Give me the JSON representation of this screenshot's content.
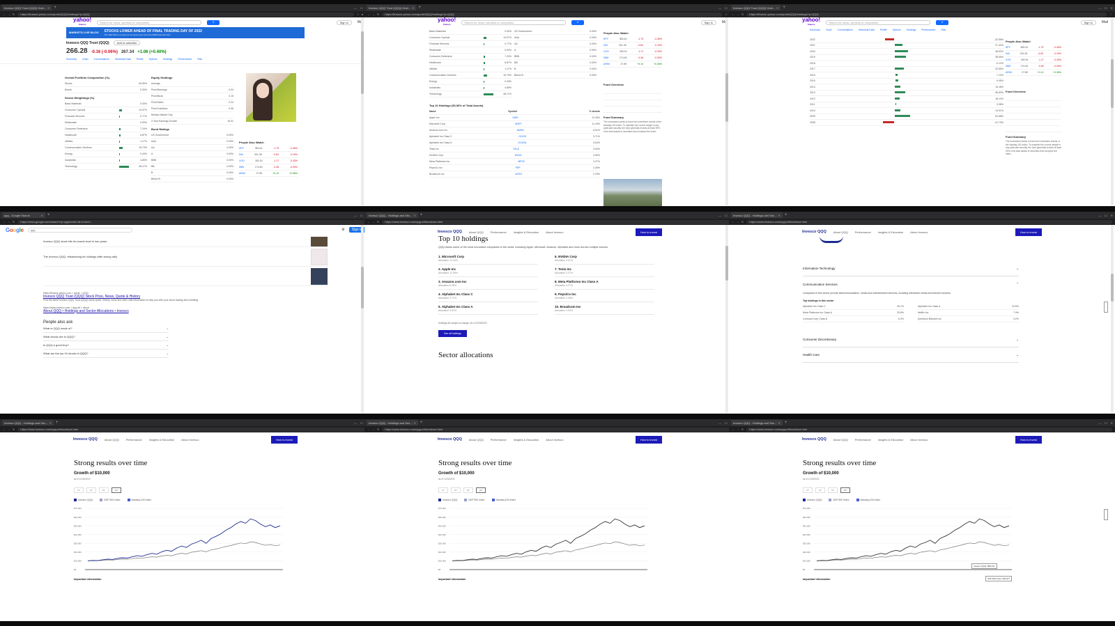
{
  "browser": {
    "tab_yahoo": "Invesco QQQ Trust (QQQ) Hold...",
    "tab_google": "qqq - Google Search",
    "tab_invesco": "Invesco QQQ - Holdings and Sec...",
    "url_yahoo": "https://finance.yahoo.com/quote/QQQ/holdings?p=QQQ",
    "url_google": "https://www.google.com/search?q=qqq&sxsrf=ALiCzsbO...",
    "url_invesco": "https://www.invesco.com/qqq-etf/en/about.html"
  },
  "yahoo": {
    "logo": "yahoo!",
    "logo_sub": "finance",
    "search_placeholder": "Search for news, symbols or companies",
    "sign_in": "Sign in",
    "mail": "Mail",
    "banner_label": "MARKETS LIVE BLOG",
    "banner_title": "STOCKS LOWER AHEAD OF FINAL TRADING DAY OF 2022",
    "banner_sub": "The S&P 500 is on pace for its worst year since the 2008 financial crisis",
    "quote_name": "Invesco QQQ Trust (QQQ)",
    "add_watchlist": "Add to watchlist",
    "price": "266.28",
    "change": "-0.16 (-0.06%)",
    "after_price": "267.34",
    "after_change": "+1.06 (+0.40%)",
    "nav": [
      "Summary",
      "Chart",
      "Conversations",
      "Historical Data",
      "Profile",
      "Options",
      "Holdings",
      "Performance",
      "Risk"
    ],
    "portfolio_title": "Overall Portfolio Composition (%)",
    "portfolio_rows": [
      [
        "Stocks",
        "99.95%"
      ],
      [
        "Bonds",
        "0.00%"
      ]
    ],
    "sector_title": "Sector Weightings (%)",
    "sector_rows": [
      [
        "Basic Materials",
        "0.00%"
      ],
      [
        "Consumer Cyclical",
        "14.97%"
      ],
      [
        "Financial Services",
        "0.77%"
      ],
      [
        "Realestate",
        "0.00%"
      ],
      [
        "Consumer Defensive",
        "7.24%"
      ],
      [
        "Healthcare",
        "6.87%"
      ],
      [
        "Utilities",
        "1.17%"
      ],
      [
        "Communication Services",
        "15.73%"
      ],
      [
        "Energy",
        "0.43%"
      ],
      [
        "Industrials",
        "4.65%"
      ],
      [
        "Technology",
        "48.17%"
      ]
    ],
    "equity_title": "Equity Holdings",
    "equity_rows": [
      [
        "Average",
        ""
      ],
      [
        "Price/Earnings",
        "0.04"
      ],
      [
        "Price/Book",
        "0.15"
      ],
      [
        "Price/Sales",
        "0.24"
      ],
      [
        "Price/Cashflow",
        "0.06"
      ],
      [
        "Median Market Cap",
        ""
      ],
      [
        "3 Year Earnings Growth",
        "15.31"
      ]
    ],
    "bond_title": "Bond Ratings",
    "bond_rows": [
      [
        "US Government",
        "0.00%"
      ],
      [
        "AAA",
        "0.00%"
      ],
      [
        "AA",
        "0.00%"
      ],
      [
        "A",
        "0.00%"
      ],
      [
        "BBB",
        "0.00%"
      ],
      [
        "BB",
        "0.00%"
      ],
      [
        "B",
        "0.00%"
      ],
      [
        "Below B",
        "0.00%"
      ]
    ],
    "also_title": "People Also Watch",
    "also_rows": [
      [
        "SPY",
        "383.44",
        "-1.79",
        "-0.46%"
      ],
      [
        "DIA",
        "331.35",
        "-0.63",
        "-0.19%"
      ],
      [
        "VOO",
        "352.51",
        "-1.17",
        "-0.33%"
      ],
      [
        "IWM",
        "174.64",
        "-0.46",
        "-0.26%"
      ],
      [
        "ARKK",
        "27.89",
        "+0.10",
        "+0.36%"
      ]
    ],
    "top10_title": "Top 10 Holdings (53.06% of Total Assets)",
    "top10_cols": [
      "Name",
      "Symbol",
      "% Assets"
    ],
    "top10_rows": [
      [
        "Apple Inc",
        "AAPL",
        "12.45%"
      ],
      [
        "Microsoft Corp",
        "MSFT",
        "11.43%"
      ],
      [
        "Amazon.com Inc",
        "AMZN",
        "6.01%"
      ],
      [
        "Alphabet Inc Class C",
        "GOOG",
        "3.71%"
      ],
      [
        "Alphabet Inc Class A",
        "GOOGL",
        "3.64%"
      ],
      [
        "Tesla Inc",
        "TSLA",
        "3.54%"
      ],
      [
        "NVIDIA Corp",
        "NVDA",
        "3.50%"
      ],
      [
        "Meta Platforms Inc",
        "META",
        "3.27%"
      ],
      [
        "PepsiCo Inc",
        "PEP",
        "2.28%"
      ],
      [
        "Broadcom Inc",
        "AVGO",
        "2.23%"
      ]
    ],
    "fund_overview": "Fund Overview",
    "fund_summary": "Fund Summary",
    "fund_summary_text": "The investment seeks to track the investment results of the Nasdaq-100 Index. To maintain the correct weight in any particular security, the fund generally invests at least 90% of its total assets in securities that comprise the index.",
    "perf_rows": [
      [
        "2022",
        "-32.58%"
      ],
      [
        "2021",
        "27.42%"
      ],
      [
        "2020",
        "48.62%"
      ],
      [
        "2019",
        "38.96%"
      ],
      [
        "2018",
        "-0.12%"
      ],
      [
        "2017",
        "32.66%"
      ],
      [
        "2016",
        "7.10%"
      ],
      [
        "2015",
        "9.45%"
      ],
      [
        "2014",
        "19.18%"
      ],
      [
        "2013",
        "36.63%"
      ],
      [
        "2012",
        "18.12%"
      ],
      [
        "2011",
        "3.38%"
      ],
      [
        "2010",
        "19.91%"
      ],
      [
        "2009",
        "54.68%"
      ],
      [
        "2008",
        "-41.73%"
      ]
    ]
  },
  "google": {
    "logo": "Google",
    "query": "qqq",
    "result_url": "https://finance.yahoo.com > quote > QQQ",
    "result_title": "Invesco QQQ Trust (QQQ) Stock Price, News, Quote & History",
    "result_snippet": "Find the latest Invesco QQQ Trust (QQQ) stock quote, history, news and other vital information to help you with your stock trading and investing.",
    "result2_url": "https://www.invesco.com > qqq-etf > about",
    "result2_title": "About QQQ • Holdings and Sector Allocations • Invesco",
    "paa_title": "People also ask",
    "paa": [
      "What is QQQ made of?",
      "What stocks are in QQQ?",
      "Is QQQ a good buy?",
      "What are the top 10 stocks in QQQ?"
    ],
    "news": [
      "Invesco QQQ stock hits its lowest level in two years",
      "The Invesco QQQ: rebalancing its holdings after strong rally"
    ]
  },
  "invesco": {
    "logo": "Invesco QQQ",
    "nav": [
      "About QQQ",
      "Performance",
      "Insights & Education",
      "About Invesco"
    ],
    "cta": "How to invest",
    "top10_title": "Top 10 holdings",
    "top10_desc": "QQQ tracks some of the most innovative companies in the world, including Apple, Microsoft, Amazon, Alphabet and more across multiple sectors.",
    "holdings": [
      [
        "Microsoft Corp",
        "Allocation 12.34%"
      ],
      [
        "NVIDIA Corp",
        "Allocation 4.21%"
      ],
      [
        "Apple Inc",
        "Allocation 11.59%"
      ],
      [
        "Tesla Inc",
        "Allocation 3.37%"
      ],
      [
        "Amazon.com Inc",
        "Allocation 6.48%"
      ],
      [
        "Meta Platforms Inc Class A",
        "Allocation 3.27%"
      ],
      [
        "Alphabet Inc Class C",
        "Allocation 3.71%"
      ],
      [
        "PepsiCo Inc",
        "Allocation 2.08%"
      ],
      [
        "Alphabet Inc Class A",
        "Allocation 3.61%"
      ],
      [
        "Broadcom Inc",
        "Allocation 1.94%"
      ]
    ],
    "holdings_note": "Holdings are subject to change. As of 12/30/2022.",
    "holdings_btn": "See all holdings",
    "sector_title": "Sector allocations",
    "acc_it": "Information Technology",
    "acc_cs": "Communication Services",
    "acc_cs_text": "Companies in this sector provide telecommunication, media and entertainment services, including interactive media and internet services.",
    "acc_cs_sub": "Top holdings in this sector",
    "acc_cs_rows": [
      [
        "Alphabet Inc Class C",
        "26.1%"
      ],
      [
        "Alphabet Inc Class A",
        "24.5%"
      ],
      [
        "Meta Platforms Inc Class A",
        "20.8%"
      ],
      [
        "Netflix Inc",
        "7.9%"
      ],
      [
        "Comcast Corp Class A",
        "6.0%"
      ],
      [
        "Activision Blizzard Inc",
        "3.2%"
      ]
    ],
    "acc_cd": "Consumer Discretionary",
    "acc_hc": "Health Care",
    "perf_title": "Strong results over time",
    "perf_sub": "Growth of $10,000",
    "perf_asof": "as of 11/30/2022",
    "ranges": [
      "1Y",
      "3Y",
      "5Y",
      "10Y"
    ],
    "legend": [
      "Invesco QQQ",
      "S&P 500 Index",
      "Nasdaq-100 Index"
    ],
    "yticks": [
      "$70,000",
      "$60,000",
      "$50,000",
      "$40,000",
      "$30,000",
      "$20,000",
      "$10,000",
      "$0"
    ],
    "disclosure": "Important information",
    "tooltip1": "Invesco QQQ: $58,431",
    "tooltip2": "S&P 500 Index: $35,977"
  }
}
